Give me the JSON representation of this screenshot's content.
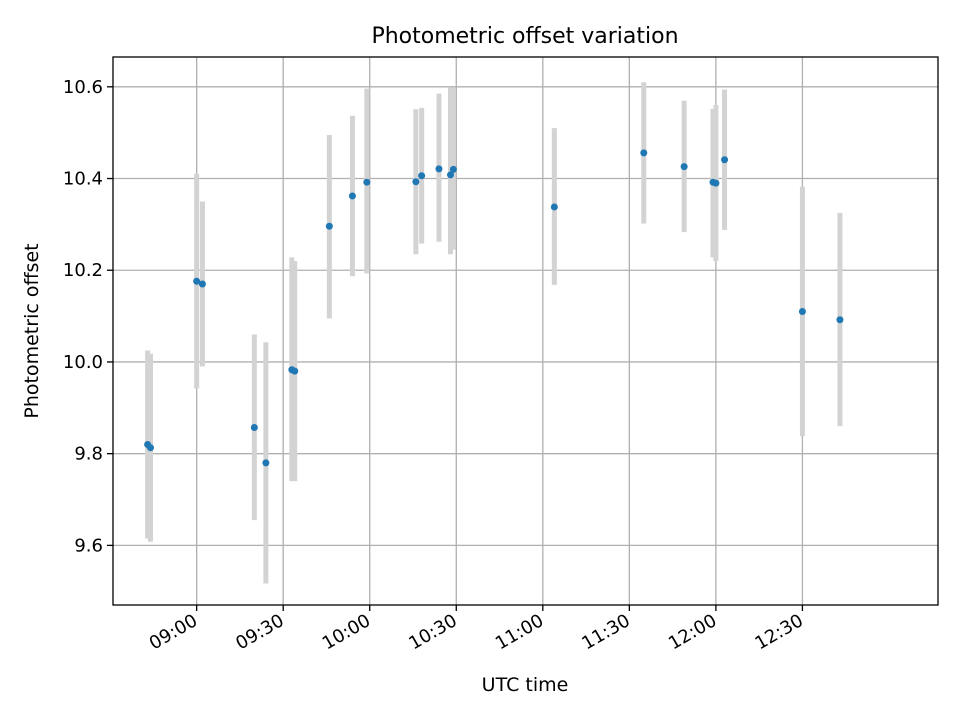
{
  "chart_data": {
    "type": "scatter",
    "title": "Photometric offset variation",
    "xlabel": "UTC time",
    "ylabel": "Photometric offset",
    "xlim": [
      "08:31",
      "13:17"
    ],
    "ylim": [
      9.47,
      10.665
    ],
    "x_ticks": [
      "09:00",
      "09:30",
      "10:00",
      "10:30",
      "11:00",
      "11:30",
      "12:00",
      "12:30"
    ],
    "y_ticks": [
      9.6,
      9.8,
      10.0,
      10.2,
      10.4,
      10.6
    ],
    "y_tick_labels": [
      "9.6",
      "9.8",
      "10.0",
      "10.2",
      "10.4",
      "10.6"
    ],
    "grid": true,
    "errorbar_color": "#d3d3d3",
    "marker_color": "#1f77b4",
    "points": [
      {
        "x": "08:43",
        "y": 9.82,
        "ylow": 9.615,
        "yhigh": 10.025
      },
      {
        "x": "08:44",
        "y": 9.813,
        "ylow": 9.608,
        "yhigh": 10.018
      },
      {
        "x": "09:00",
        "y": 10.176,
        "ylow": 9.942,
        "yhigh": 10.41
      },
      {
        "x": "09:02",
        "y": 10.17,
        "ylow": 9.99,
        "yhigh": 10.35
      },
      {
        "x": "09:20",
        "y": 9.857,
        "ylow": 9.655,
        "yhigh": 10.06
      },
      {
        "x": "09:24",
        "y": 9.78,
        "ylow": 9.517,
        "yhigh": 10.043
      },
      {
        "x": "09:33",
        "y": 9.983,
        "ylow": 9.74,
        "yhigh": 10.228
      },
      {
        "x": "09:34",
        "y": 9.98,
        "ylow": 9.74,
        "yhigh": 10.22
      },
      {
        "x": "09:46",
        "y": 10.296,
        "ylow": 10.095,
        "yhigh": 10.495
      },
      {
        "x": "09:54",
        "y": 10.362,
        "ylow": 10.187,
        "yhigh": 10.537
      },
      {
        "x": "09:59",
        "y": 10.392,
        "ylow": 10.193,
        "yhigh": 10.596
      },
      {
        "x": "10:16",
        "y": 10.393,
        "ylow": 10.235,
        "yhigh": 10.551
      },
      {
        "x": "10:18",
        "y": 10.406,
        "ylow": 10.258,
        "yhigh": 10.554
      },
      {
        "x": "10:24",
        "y": 10.421,
        "ylow": 10.262,
        "yhigh": 10.585
      },
      {
        "x": "10:28",
        "y": 10.408,
        "ylow": 10.235,
        "yhigh": 10.598
      },
      {
        "x": "10:29",
        "y": 10.42,
        "ylow": 10.245,
        "yhigh": 10.598
      },
      {
        "x": "11:04",
        "y": 10.338,
        "ylow": 10.168,
        "yhigh": 10.51
      },
      {
        "x": "11:35",
        "y": 10.456,
        "ylow": 10.302,
        "yhigh": 10.61
      },
      {
        "x": "11:49",
        "y": 10.426,
        "ylow": 10.283,
        "yhigh": 10.57
      },
      {
        "x": "11:59",
        "y": 10.392,
        "ylow": 10.228,
        "yhigh": 10.552
      },
      {
        "x": "12:00",
        "y": 10.39,
        "ylow": 10.22,
        "yhigh": 10.56
      },
      {
        "x": "12:03",
        "y": 10.441,
        "ylow": 10.288,
        "yhigh": 10.594
      },
      {
        "x": "12:30",
        "y": 10.11,
        "ylow": 9.838,
        "yhigh": 10.382
      },
      {
        "x": "12:43",
        "y": 10.092,
        "ylow": 9.86,
        "yhigh": 10.325
      }
    ]
  }
}
